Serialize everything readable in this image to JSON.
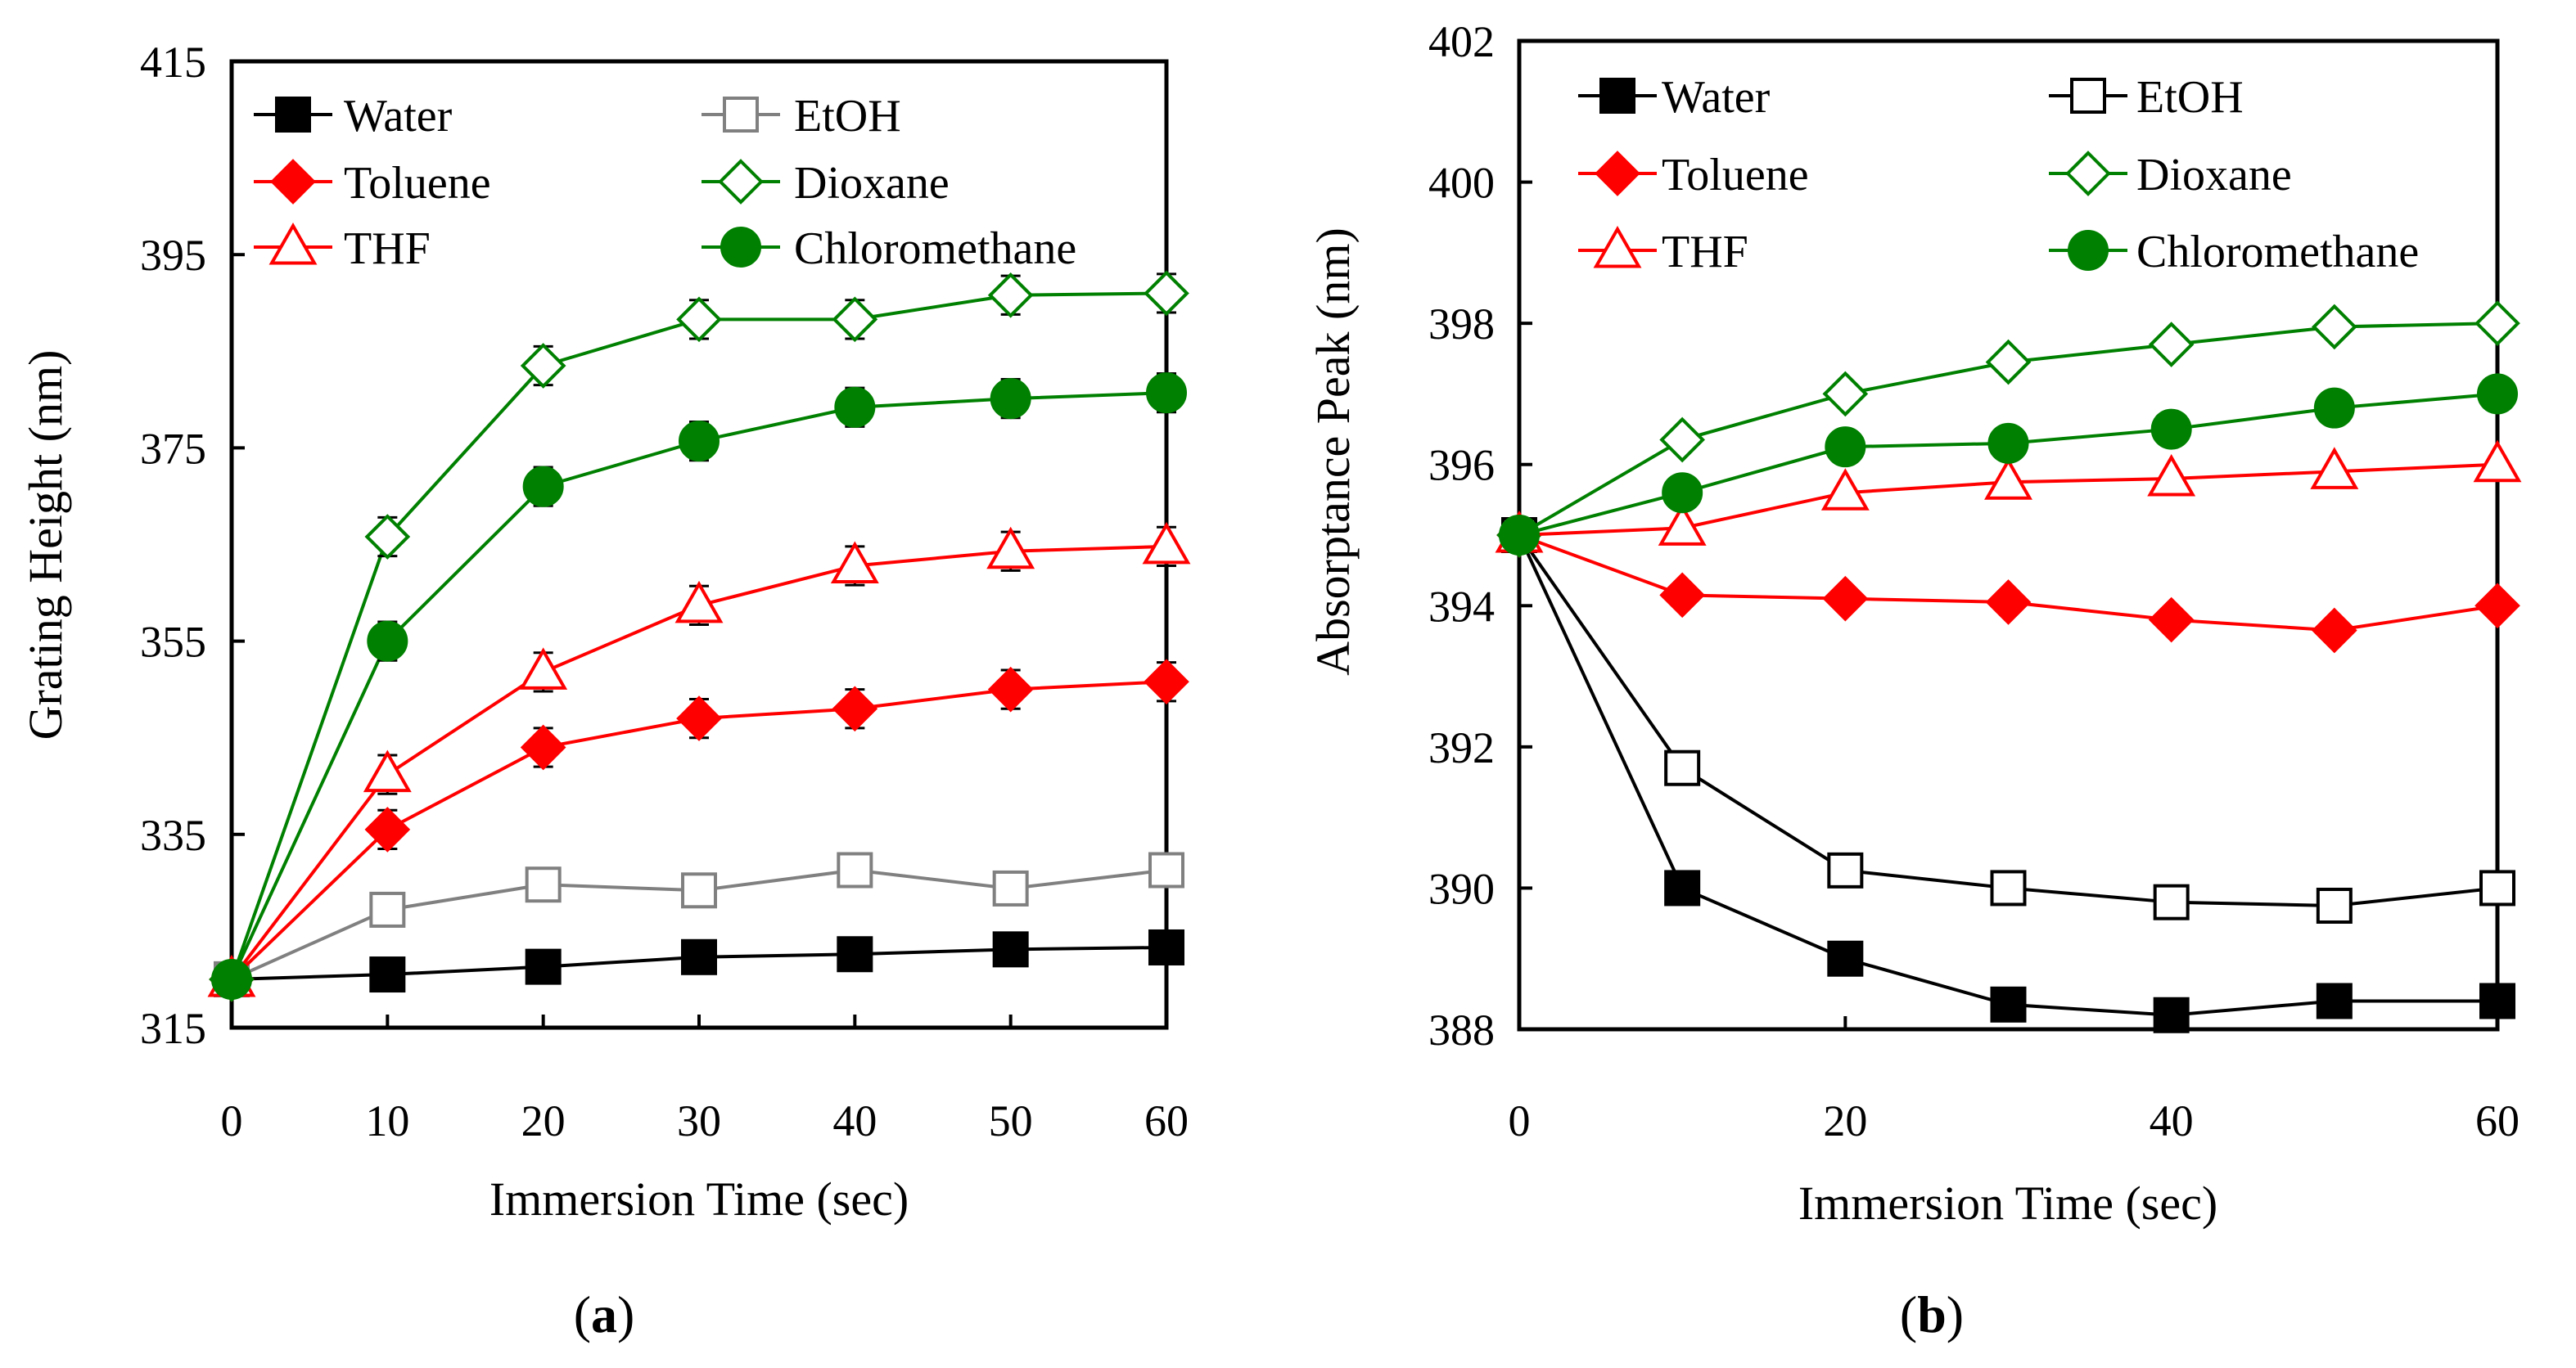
{
  "chart_data": [
    {
      "type": "line",
      "panel_label": "a",
      "xlabel": "Immersion Time (sec)",
      "ylabel": "Grating Height (nm)",
      "xlim": [
        0,
        60
      ],
      "ylim": [
        315,
        415
      ],
      "xticks": [
        0,
        10,
        20,
        30,
        40,
        50,
        60
      ],
      "yticks": [
        315,
        335,
        355,
        375,
        395,
        415
      ],
      "x": [
        0,
        10,
        20,
        30,
        40,
        50,
        60
      ],
      "legend_position": "top-left",
      "series": [
        {
          "name": "Water",
          "color": "#000000",
          "marker": "square-filled",
          "values": [
            320,
            320.5,
            321.3,
            322.3,
            322.6,
            323.1,
            323.3
          ],
          "errors": [
            1.5,
            1.5,
            1.5,
            1.6,
            1.6,
            1.6,
            1.6
          ]
        },
        {
          "name": "EtOH",
          "color": "#808080",
          "marker": "square-open",
          "values": [
            320,
            327.2,
            329.8,
            329.2,
            331.3,
            329.4,
            331.3
          ],
          "errors": [
            1.5,
            1.6,
            1.7,
            1.7,
            1.7,
            1.7,
            1.7
          ]
        },
        {
          "name": "Toluene",
          "color": "#ff0000",
          "marker": "diamond-filled",
          "values": [
            320,
            335.5,
            344,
            347,
            348,
            350,
            350.8
          ],
          "errors": [
            1.5,
            2,
            2,
            2,
            2,
            2,
            2
          ]
        },
        {
          "name": "Dioxane",
          "color": "#008000",
          "marker": "diamond-open",
          "values": [
            320,
            365.8,
            383.5,
            388.3,
            388.3,
            390.8,
            391
          ],
          "errors": [
            1.5,
            2,
            2,
            2,
            2,
            2,
            2
          ]
        },
        {
          "name": "THF",
          "color": "#ff0000",
          "marker": "triangle-open",
          "values": [
            320,
            341.2,
            351.8,
            358.7,
            362.8,
            364.3,
            364.8
          ],
          "errors": [
            1.5,
            2,
            2,
            2,
            2,
            2,
            2
          ]
        },
        {
          "name": "Chloromethane",
          "color": "#008000",
          "marker": "circle-filled",
          "values": [
            320,
            355,
            371,
            375.7,
            379.2,
            380.1,
            380.7
          ],
          "errors": [
            1.5,
            2,
            2,
            2,
            2,
            2,
            2
          ]
        }
      ]
    },
    {
      "type": "line",
      "panel_label": "b",
      "xlabel": "Immersion Time (sec)",
      "ylabel": "Absorptance Peak (nm)",
      "xlim": [
        0,
        60
      ],
      "ylim": [
        388,
        402
      ],
      "xticks": [
        0,
        20,
        40,
        60
      ],
      "yticks": [
        388,
        390,
        392,
        394,
        396,
        398,
        400,
        402
      ],
      "x": [
        0,
        10,
        20,
        30,
        40,
        50,
        60
      ],
      "legend_position": "top-left",
      "series": [
        {
          "name": "Water",
          "color": "#000000",
          "marker": "square-filled",
          "values": [
            395,
            390,
            389,
            388.35,
            388.2,
            388.4,
            388.4
          ]
        },
        {
          "name": "EtOH",
          "color": "#000000",
          "marker": "square-open",
          "values": [
            395,
            391.7,
            390.25,
            390,
            389.8,
            389.75,
            390
          ]
        },
        {
          "name": "Toluene",
          "color": "#ff0000",
          "marker": "diamond-filled",
          "values": [
            395,
            394.15,
            394.1,
            394.05,
            393.8,
            393.65,
            394
          ]
        },
        {
          "name": "Dioxane",
          "color": "#008000",
          "marker": "diamond-open",
          "values": [
            395,
            396.35,
            397,
            397.45,
            397.7,
            397.95,
            398
          ]
        },
        {
          "name": "THF",
          "color": "#ff0000",
          "marker": "triangle-open",
          "values": [
            395,
            395.1,
            395.6,
            395.75,
            395.8,
            395.9,
            396
          ]
        },
        {
          "name": "Chloromethane",
          "color": "#008000",
          "marker": "circle-filled",
          "values": [
            395,
            395.6,
            396.25,
            396.3,
            396.5,
            396.8,
            397
          ]
        }
      ]
    }
  ]
}
